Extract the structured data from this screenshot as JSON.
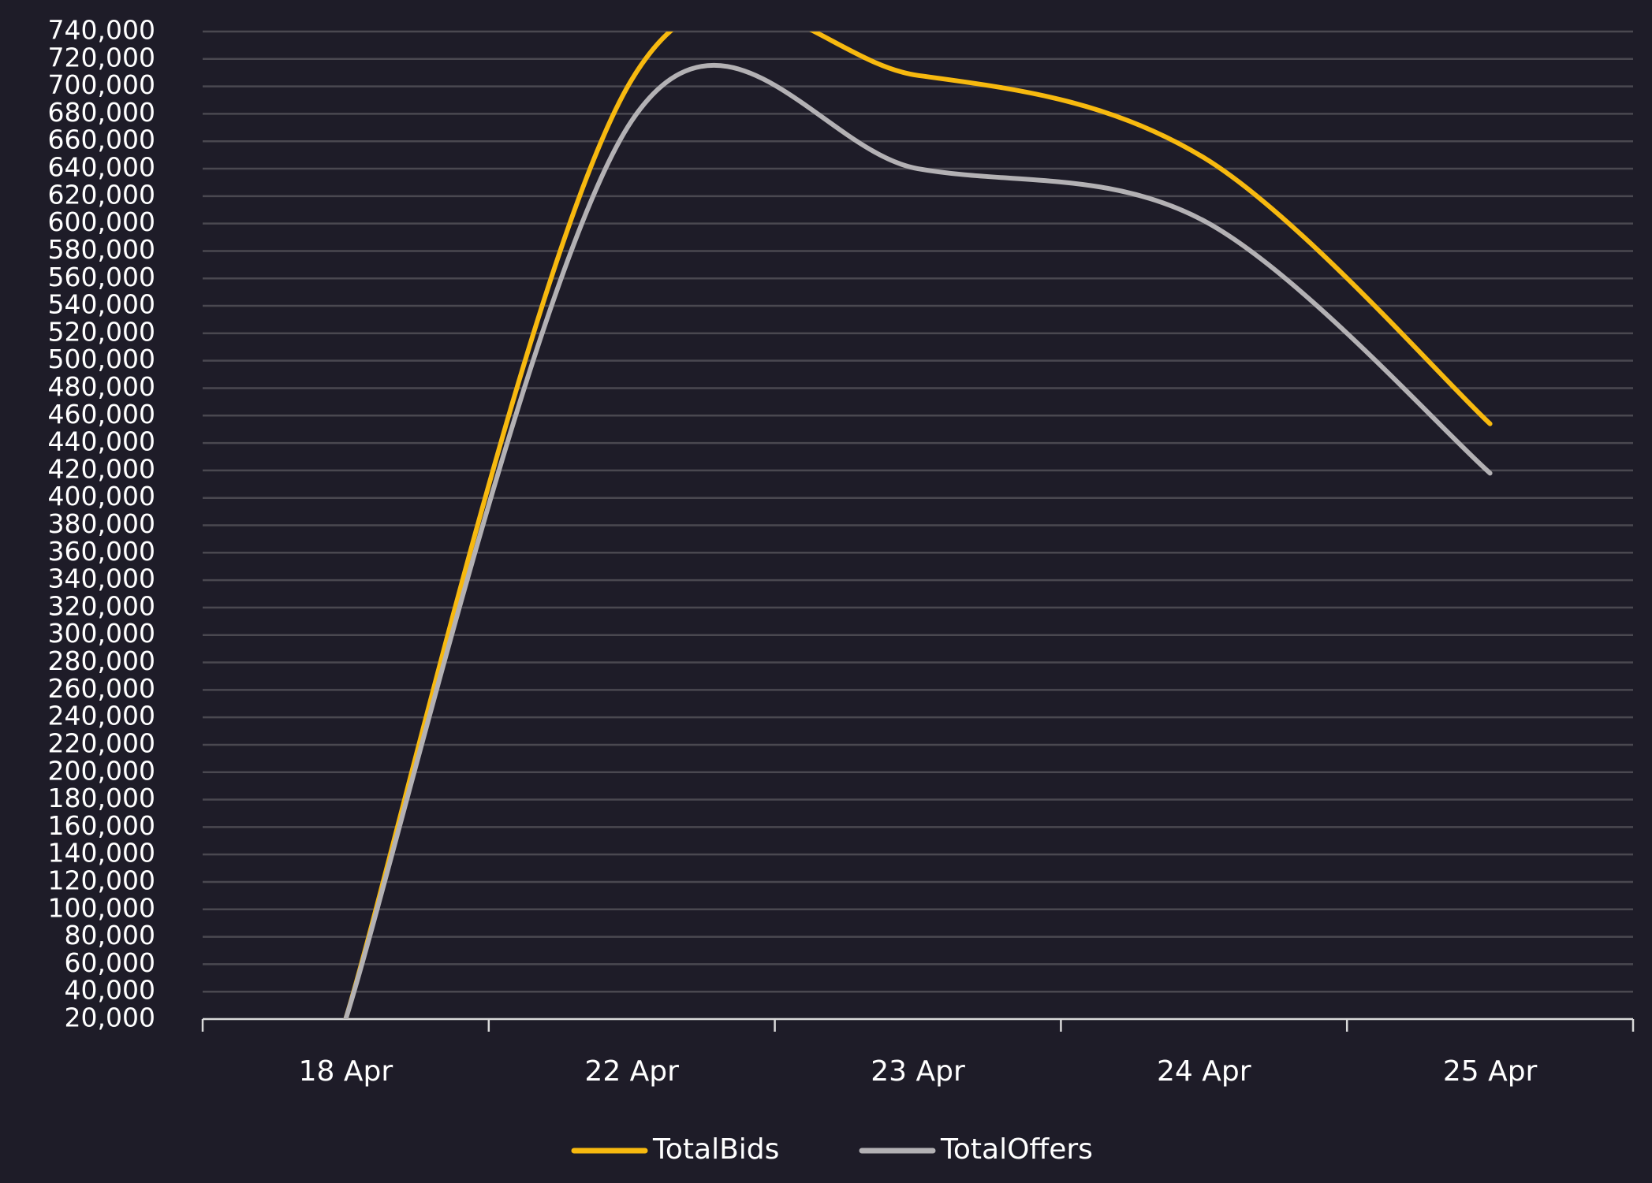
{
  "chart_data": {
    "type": "line",
    "categories": [
      "18 Apr",
      "22 Apr",
      "23 Apr",
      "24 Apr",
      "25 Apr"
    ],
    "series": [
      {
        "name": "TotalBids",
        "color": "#f7b90f",
        "values": [
          20000,
          705000,
          708000,
          648000,
          454000
        ]
      },
      {
        "name": "TotalOffers",
        "color": "#b3b1b4",
        "values": [
          20000,
          675000,
          640000,
          602000,
          418000
        ]
      }
    ],
    "ylim": [
      20000,
      740000
    ],
    "yticks": [
      {
        "value": 20000,
        "label": "20,000"
      },
      {
        "value": 40000,
        "label": "40,000"
      },
      {
        "value": 60000,
        "label": "60,000"
      },
      {
        "value": 80000,
        "label": "80,000"
      },
      {
        "value": 100000,
        "label": "100,000"
      },
      {
        "value": 120000,
        "label": "120,000"
      },
      {
        "value": 140000,
        "label": "140,000"
      },
      {
        "value": 160000,
        "label": "160,000"
      },
      {
        "value": 180000,
        "label": "180,000"
      },
      {
        "value": 200000,
        "label": "200,000"
      },
      {
        "value": 220000,
        "label": "220,000"
      },
      {
        "value": 240000,
        "label": "240,000"
      },
      {
        "value": 260000,
        "label": "260,000"
      },
      {
        "value": 280000,
        "label": "280,000"
      },
      {
        "value": 300000,
        "label": "300,000"
      },
      {
        "value": 320000,
        "label": "320,000"
      },
      {
        "value": 340000,
        "label": "340,000"
      },
      {
        "value": 360000,
        "label": "360,000"
      },
      {
        "value": 380000,
        "label": "380,000"
      },
      {
        "value": 400000,
        "label": "400,000"
      },
      {
        "value": 420000,
        "label": "420,000"
      },
      {
        "value": 440000,
        "label": "440,000"
      },
      {
        "value": 460000,
        "label": "460,000"
      },
      {
        "value": 480000,
        "label": "480,000"
      },
      {
        "value": 500000,
        "label": "500,000"
      },
      {
        "value": 520000,
        "label": "520,000"
      },
      {
        "value": 540000,
        "label": "540,000"
      },
      {
        "value": 560000,
        "label": "560,000"
      },
      {
        "value": 580000,
        "label": "580,000"
      },
      {
        "value": 600000,
        "label": "600,000"
      },
      {
        "value": 620000,
        "label": "620,000"
      },
      {
        "value": 640000,
        "label": "640,000"
      },
      {
        "value": 660000,
        "label": "660,000"
      },
      {
        "value": 680000,
        "label": "680,000"
      },
      {
        "value": 700000,
        "label": "700,000"
      },
      {
        "value": 720000,
        "label": "720,000"
      },
      {
        "value": 740000,
        "label": "740,000"
      }
    ],
    "grid": true,
    "legend": "bottom"
  }
}
